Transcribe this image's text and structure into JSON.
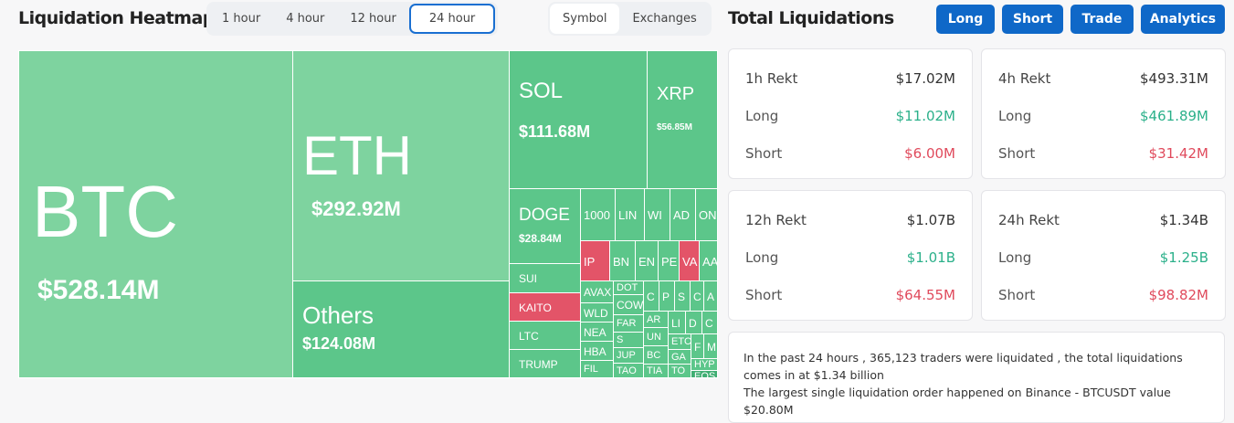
{
  "heatmap": {
    "title": "Liquidation Heatmap",
    "time_options": [
      "1 hour",
      "4 hour",
      "12 hour",
      "24 hour"
    ],
    "selected_time": "24 hour",
    "view_options": [
      "Symbol",
      "Exchanges"
    ],
    "selected_view": "Symbol",
    "colors": {
      "long_large": "#7ed39f",
      "long": "#5cc68a",
      "short": "#e35468",
      "dark": "#3fae72"
    },
    "cells": [
      {
        "label": "BTC",
        "value": "$528.14M",
        "color": "long_large"
      },
      {
        "label": "ETH",
        "value": "$292.92M",
        "color": "long_large"
      },
      {
        "label": "Others",
        "value": "$124.08M",
        "color": "long"
      },
      {
        "label": "SOL",
        "value": "$111.68M",
        "color": "long"
      },
      {
        "label": "XRP",
        "value": "$56.85M",
        "color": "long"
      },
      {
        "label": "DOGE",
        "value": "$28.84M",
        "color": "long"
      },
      {
        "label": "SUI",
        "color": "long"
      },
      {
        "label": "KAITO",
        "color": "short"
      },
      {
        "label": "LTC",
        "color": "long"
      },
      {
        "label": "TRUMP",
        "color": "long"
      },
      {
        "label": "1000",
        "color": "long"
      },
      {
        "label": "LIN",
        "color": "long"
      },
      {
        "label": "WI",
        "color": "long"
      },
      {
        "label": "AD",
        "color": "long"
      },
      {
        "label": "ON",
        "color": "long"
      },
      {
        "label": "IP",
        "color": "short"
      },
      {
        "label": "BN",
        "color": "long"
      },
      {
        "label": "EN",
        "color": "long"
      },
      {
        "label": "PE",
        "color": "long"
      },
      {
        "label": "VA",
        "color": "short"
      },
      {
        "label": "AA",
        "color": "long"
      },
      {
        "label": "AVAX",
        "color": "long"
      },
      {
        "label": "WLD",
        "color": "long"
      },
      {
        "label": "NEA",
        "color": "long"
      },
      {
        "label": "HBA",
        "color": "long"
      },
      {
        "label": "FIL",
        "color": "long"
      },
      {
        "label": "DOT",
        "color": "long"
      },
      {
        "label": "COW",
        "color": "long"
      },
      {
        "label": "FAR",
        "color": "long"
      },
      {
        "label": "S",
        "color": "long"
      },
      {
        "label": "JUP",
        "color": "long"
      },
      {
        "label": "TAO",
        "color": "long"
      },
      {
        "label": "C",
        "color": "long"
      },
      {
        "label": "P",
        "color": "long"
      },
      {
        "label": "S",
        "color": "long"
      },
      {
        "label": "C",
        "color": "long"
      },
      {
        "label": "A",
        "color": "long"
      },
      {
        "label": "AR",
        "color": "long"
      },
      {
        "label": "UN",
        "color": "long"
      },
      {
        "label": "BC",
        "color": "long"
      },
      {
        "label": "TIA",
        "color": "long"
      },
      {
        "label": "LI",
        "color": "long"
      },
      {
        "label": "D",
        "color": "long"
      },
      {
        "label": "C",
        "color": "long"
      },
      {
        "label": "ETC",
        "color": "long"
      },
      {
        "label": "GA",
        "color": "long"
      },
      {
        "label": "TO",
        "color": "long"
      },
      {
        "label": "F",
        "color": "long"
      },
      {
        "label": "M",
        "color": "long"
      },
      {
        "label": "HYP",
        "color": "long"
      },
      {
        "label": "EOS",
        "color": "dark"
      }
    ]
  },
  "totals": {
    "title": "Total Liquidations",
    "buttons": [
      "Long",
      "Short",
      "Trade",
      "Analytics"
    ],
    "cards": [
      {
        "label": "1h Rekt",
        "total": "$17.02M",
        "long_label": "Long",
        "long": "$11.02M",
        "short_label": "Short",
        "short": "$6.00M"
      },
      {
        "label": "4h Rekt",
        "total": "$493.31M",
        "long_label": "Long",
        "long": "$461.89M",
        "short_label": "Short",
        "short": "$31.42M"
      },
      {
        "label": "12h Rekt",
        "total": "$1.07B",
        "long_label": "Long",
        "long": "$1.01B",
        "short_label": "Short",
        "short": "$64.55M"
      },
      {
        "label": "24h Rekt",
        "total": "$1.34B",
        "long_label": "Long",
        "long": "$1.25B",
        "short_label": "Short",
        "short": "$98.82M"
      }
    ],
    "summary_line1": "In the past 24 hours , 365,123 traders were liquidated , the total liquidations comes in at $1.34 billion",
    "summary_line2": "The largest single liquidation order happened on Binance - BTCUSDT value $20.80M"
  }
}
